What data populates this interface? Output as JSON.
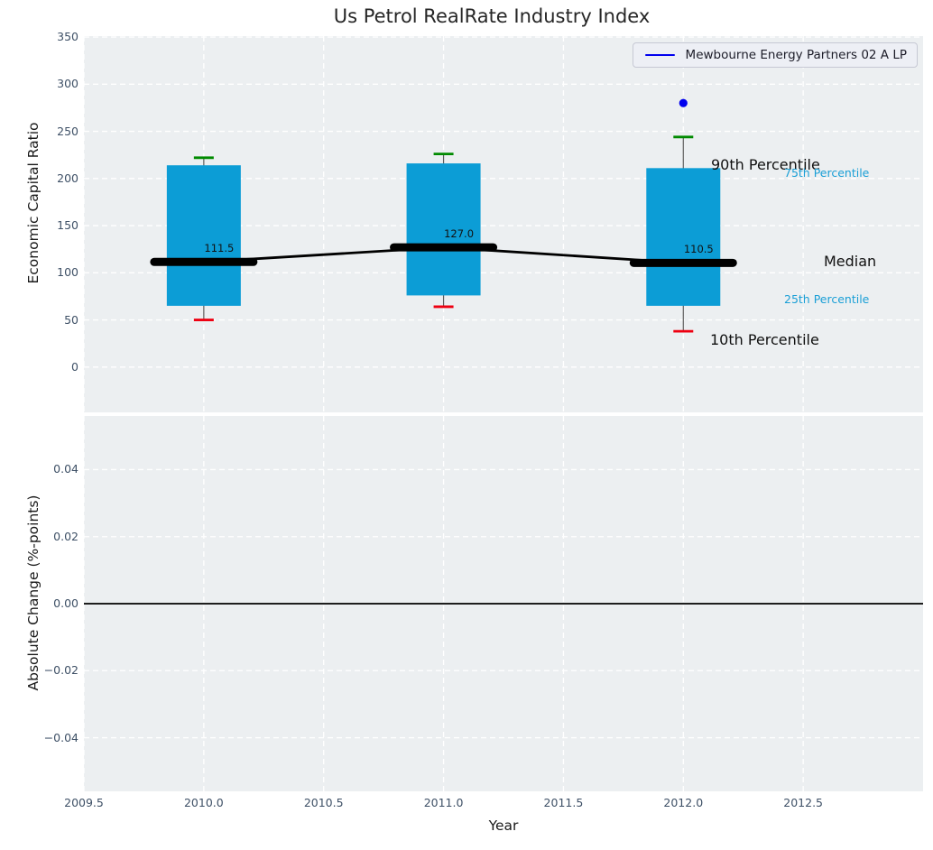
{
  "title": "Us Petrol RealRate Industry Index",
  "xlabel": "Year",
  "legend": {
    "label": "Mewbourne Energy Partners 02 A LP",
    "line_color": "#0000ee"
  },
  "annotations": {
    "p90": "90th Percentile",
    "p75": "75th Percentile",
    "median": "Median",
    "p25": "25th Percentile",
    "p10": "10th Percentile"
  },
  "chart_data": [
    {
      "type": "box",
      "title": "Us Petrol RealRate Industry Index",
      "xlabel": "Year",
      "ylabel": "Economic Capital Ratio",
      "x": [
        2010.0,
        2011.0,
        2012.0
      ],
      "whisker_low_p10": [
        50,
        64,
        38
      ],
      "box_low_p25": [
        65,
        76,
        65
      ],
      "median": [
        111.5,
        127.0,
        110.5
      ],
      "box_high_p75": [
        214,
        216,
        211
      ],
      "whisker_high_p90": [
        222,
        226,
        244
      ],
      "median_labels": [
        "111.5",
        "127.0",
        "110.5"
      ],
      "series": [
        {
          "name": "Mewbourne Energy Partners 02 A LP",
          "type": "scatter",
          "x": [
            2012.0
          ],
          "y": [
            280
          ],
          "color": "#0000ee"
        }
      ],
      "xlim": [
        2009.5,
        2013.0
      ],
      "ylim": [
        -48,
        351
      ],
      "yticks": {
        "labels": [
          "350",
          "300",
          "250",
          "200",
          "150",
          "100",
          "50",
          "0"
        ],
        "values": [
          350,
          300,
          250,
          200,
          150,
          100,
          50,
          0
        ]
      },
      "grid": true,
      "legend_position": "upper right",
      "colors": {
        "box": "#0c9dd6",
        "p90_cap": "#008a00",
        "p10_cap": "#ee0011",
        "median_line": "#000000",
        "whisker": "#5f5f5f",
        "point": "#0000ee"
      }
    },
    {
      "type": "line",
      "title": "",
      "xlabel": "Year",
      "ylabel": "Absolute Change (%-points)",
      "x": [],
      "values": [],
      "zero_line": 0.0,
      "xlim": [
        2009.5,
        2013.0
      ],
      "ylim": [
        -0.056,
        0.056
      ],
      "xticks": {
        "labels": [
          "2009.5",
          "2010.0",
          "2010.5",
          "2011.0",
          "2011.5",
          "2012.0",
          "2012.5"
        ],
        "values": [
          2009.5,
          2010.0,
          2010.5,
          2011.0,
          2011.5,
          2012.0,
          2012.5
        ]
      },
      "yticks": {
        "labels": [
          "0.04",
          "0.02",
          "0.00",
          "−0.02",
          "−0.04"
        ],
        "values": [
          0.04,
          0.02,
          0.0,
          -0.02,
          -0.04
        ]
      },
      "grid": true
    }
  ]
}
